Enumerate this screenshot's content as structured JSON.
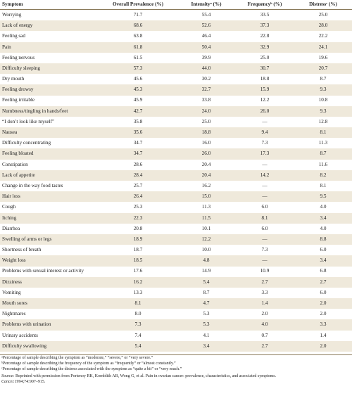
{
  "headers": [
    "Symptom",
    "Overall Prevalence (%)",
    "Intensityᵃ (%)",
    "Frequencyᵇ (%)",
    "Distressᶜ (%)"
  ],
  "rows": [
    [
      "Worrying",
      "71.7",
      "55.4",
      "33.5",
      "25.0"
    ],
    [
      "Lack of energy",
      "68.6",
      "52.6",
      "37.3",
      "28.0"
    ],
    [
      "Feeling sad",
      "63.8",
      "46.4",
      "22.8",
      "22.2"
    ],
    [
      "Pain",
      "61.8",
      "50.4",
      "32.9",
      "24.1"
    ],
    [
      "Feeling nervous",
      "61.5",
      "39.9",
      "25.0",
      "19.6"
    ],
    [
      "Difficulty sleeping",
      "57.3",
      "44.0",
      "30.7",
      "20.7"
    ],
    [
      "Dry mouth",
      "45.6",
      "30.2",
      "18.8",
      "8.7"
    ],
    [
      "Feeling drowsy",
      "45.3",
      "32.7",
      "15.9",
      "9.3"
    ],
    [
      "Feeling irritable",
      "45.9",
      "33.8",
      "12.2",
      "10.8"
    ],
    [
      "Numbness/tingling in hands/feet",
      "42.7",
      "24.0",
      "26.0",
      "9.3"
    ],
    [
      "“I don’t look like myself”",
      "35.8",
      "25.0",
      "—",
      "12.8"
    ],
    [
      "Nausea",
      "35.6",
      "18.8",
      "9.4",
      "8.1"
    ],
    [
      "Difficulty concentrating",
      "34.7",
      "16.0",
      "7.3",
      "11.3"
    ],
    [
      "Feeling bloated",
      "34.7",
      "26.0",
      "17.3",
      "8.7"
    ],
    [
      "Constipation",
      "28.6",
      "20.4",
      "—",
      "11.6"
    ],
    [
      "Lack of appetite",
      "28.4",
      "20.4",
      "14.2",
      "8.2"
    ],
    [
      "Change in the way food tastes",
      "25.7",
      "16.2",
      "—",
      "8.1"
    ],
    [
      "Hair loss",
      "26.4",
      "15.0",
      "—",
      "9.5"
    ],
    [
      "Cough",
      "25.3",
      "11.3",
      "6.0",
      "4.0"
    ],
    [
      "Itching",
      "22.3",
      "11.5",
      "8.1",
      "3.4"
    ],
    [
      "Diarrhea",
      "20.8",
      "10.1",
      "6.0",
      "4.0"
    ],
    [
      "Swelling of arms or legs",
      "18.9",
      "12.2",
      "—",
      "8.8"
    ],
    [
      "Shortness of breath",
      "18.7",
      "10.0",
      "7.3",
      "6.0"
    ],
    [
      "Weight loss",
      "18.5",
      "4.8",
      "—",
      "3.4"
    ],
    [
      "Problems with sexual interest or activity",
      "17.6",
      "14.9",
      "10.9",
      "6.8"
    ],
    [
      "Dizziness",
      "16.2",
      "5.4",
      "2.7",
      "2.7"
    ],
    [
      "Vomiting",
      "13.3",
      "8.7",
      "3.3",
      "6.0"
    ],
    [
      "Mouth sores",
      "8.1",
      "4.7",
      "1.4",
      "2.0"
    ],
    [
      "Nightmares",
      "8.0",
      "5.3",
      "2.0",
      "2.0"
    ],
    [
      "Problems with urination",
      "7.3",
      "5.3",
      "4.0",
      "3.3"
    ],
    [
      "Urinary accidents",
      "7.4",
      "4.1",
      "0.7",
      "1.4"
    ],
    [
      "Difficulty swallowing",
      "5.4",
      "3.4",
      "2.7",
      "2.0"
    ]
  ],
  "footnotes": {
    "a": "ᵃPercentage of sample describing the symptom as “moderate,” “severe,” or “very severe.”",
    "b": "ᵇPercentage of sample describing the frequency of the symptom as “frequently” or “almost constantly.”",
    "c": "ᶜPercentage of sample describing the distress associated with the symptom as “quite a bit” or “very much.”"
  },
  "source": {
    "label": "Source:",
    "text": " Reprinted with permission from Portenoy RK, Kornblith AB, Wong G, et al. Pain in ovarian cancer: prevalence, characteristics, and associated symptoms.",
    "journal": "Cancer.",
    "citation": "1994;74:907–915."
  }
}
